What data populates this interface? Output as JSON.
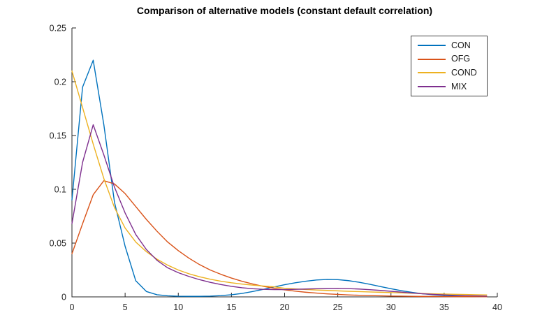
{
  "figure": {
    "title": "Comparison of alternative models (constant default correlation)"
  },
  "chart_data": {
    "type": "line",
    "title": "Comparison of alternative models (constant default correlation)",
    "xlabel": "",
    "ylabel": "",
    "xlim": [
      0,
      40
    ],
    "ylim": [
      0,
      0.25
    ],
    "grid": false,
    "legend_position": "top-right",
    "axis_color": "#262626",
    "tick_label_color": "#262626",
    "x_ticks": [
      0,
      5,
      10,
      15,
      20,
      25,
      30,
      35,
      40
    ],
    "x_tick_labels": [
      "0",
      "5",
      "10",
      "15",
      "20",
      "25",
      "30",
      "35",
      "40"
    ],
    "y_ticks": [
      0,
      0.05,
      0.1,
      0.15,
      0.2,
      0.25
    ],
    "y_tick_labels": [
      "0",
      "0.05",
      "0.1",
      "0.15",
      "0.2",
      "0.25"
    ],
    "x_start": 0,
    "x_step": 1,
    "series": [
      {
        "name": "CON",
        "color": "#0072BD",
        "values": [
          0.09,
          0.195,
          0.22,
          0.16,
          0.088,
          0.047,
          0.015,
          0.005,
          0.002,
          0.001,
          0.0006,
          0.0005,
          0.0005,
          0.0007,
          0.0012,
          0.002,
          0.0032,
          0.005,
          0.007,
          0.0092,
          0.0113,
          0.0131,
          0.0146,
          0.0157,
          0.0162,
          0.016,
          0.0151,
          0.0136,
          0.0117,
          0.0096,
          0.0076,
          0.0057,
          0.0042,
          0.0029,
          0.002,
          0.0013,
          0.0009,
          0.0006,
          0.0004,
          0.0003
        ]
      },
      {
        "name": "OFG",
        "color": "#D95319",
        "values": [
          0.04,
          0.068,
          0.095,
          0.108,
          0.105,
          0.096,
          0.084,
          0.072,
          0.061,
          0.051,
          0.043,
          0.036,
          0.03,
          0.025,
          0.021,
          0.0175,
          0.0145,
          0.012,
          0.0098,
          0.008,
          0.0065,
          0.0053,
          0.0043,
          0.0035,
          0.0028,
          0.0023,
          0.0018,
          0.0015,
          0.0012,
          0.001,
          0.0008,
          0.0007,
          0.0005,
          0.0004,
          0.0004,
          0.0003,
          0.0002,
          0.0002,
          0.0002,
          0.0001
        ]
      },
      {
        "name": "COND",
        "color": "#EDB120",
        "values": [
          0.21,
          0.176,
          0.142,
          0.11,
          0.083,
          0.064,
          0.051,
          0.042,
          0.035,
          0.0295,
          0.025,
          0.0215,
          0.0187,
          0.0164,
          0.0146,
          0.0131,
          0.0119,
          0.0109,
          0.0101,
          0.0094,
          0.008,
          0.0074,
          0.0069,
          0.0064,
          0.006,
          0.0056,
          0.0052,
          0.0049,
          0.0046,
          0.0043,
          0.004,
          0.0037,
          0.0034,
          0.0031,
          0.0028,
          0.0026,
          0.0024,
          0.0022,
          0.002,
          0.0018
        ]
      },
      {
        "name": "MIX",
        "color": "#7E2F8E",
        "values": [
          0.068,
          0.125,
          0.16,
          0.132,
          0.102,
          0.078,
          0.058,
          0.044,
          0.034,
          0.027,
          0.0225,
          0.019,
          0.016,
          0.0135,
          0.0115,
          0.0098,
          0.0085,
          0.0076,
          0.007,
          0.0068,
          0.0068,
          0.007,
          0.0073,
          0.0076,
          0.0078,
          0.0079,
          0.0077,
          0.0073,
          0.0067,
          0.006,
          0.0052,
          0.0044,
          0.0036,
          0.0029,
          0.0023,
          0.0018,
          0.0014,
          0.0011,
          0.0009,
          0.0007
        ]
      }
    ]
  }
}
